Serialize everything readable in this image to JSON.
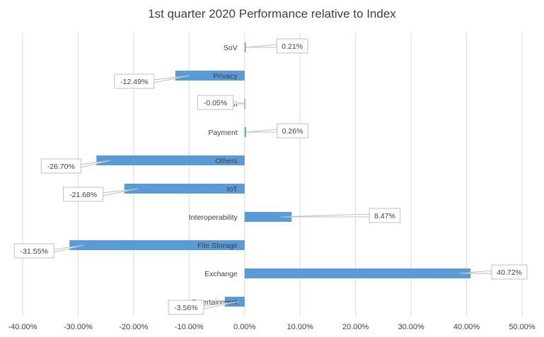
{
  "chart_data": {
    "type": "bar",
    "orientation": "horizontal",
    "title": "1st quarter 2020 Performance relative to Index",
    "xlabel": "",
    "ylabel": "",
    "xlim": [
      -0.4,
      0.5
    ],
    "xticks": [
      -0.4,
      -0.3,
      -0.2,
      -0.1,
      0.0,
      0.1,
      0.2,
      0.3,
      0.4,
      0.5
    ],
    "xtick_labels": [
      "-40.00%",
      "-30.00%",
      "-20.00%",
      "-10.00%",
      "0.00%",
      "10.00%",
      "20.00%",
      "30.00%",
      "40.00%",
      "50.00%"
    ],
    "grid": true,
    "legend": "none",
    "bar_color": "#5b9bd5",
    "categories": [
      "SoV",
      "Privacy",
      "Platform",
      "Payment",
      "Others",
      "IoT",
      "Interoperability",
      "File Storage",
      "Exchange",
      "Entertainment"
    ],
    "values": [
      0.0021,
      -0.1249,
      -0.0005,
      0.0026,
      -0.267,
      -0.2168,
      0.0847,
      -0.3155,
      0.4072,
      -0.0356
    ],
    "data_labels": [
      "0.21%",
      "-12.49%",
      "-0.05%",
      "0.26%",
      "-26.70%",
      "-21.68%",
      "8.47%",
      "-31.55%",
      "40.72%",
      "-3.56%"
    ]
  }
}
